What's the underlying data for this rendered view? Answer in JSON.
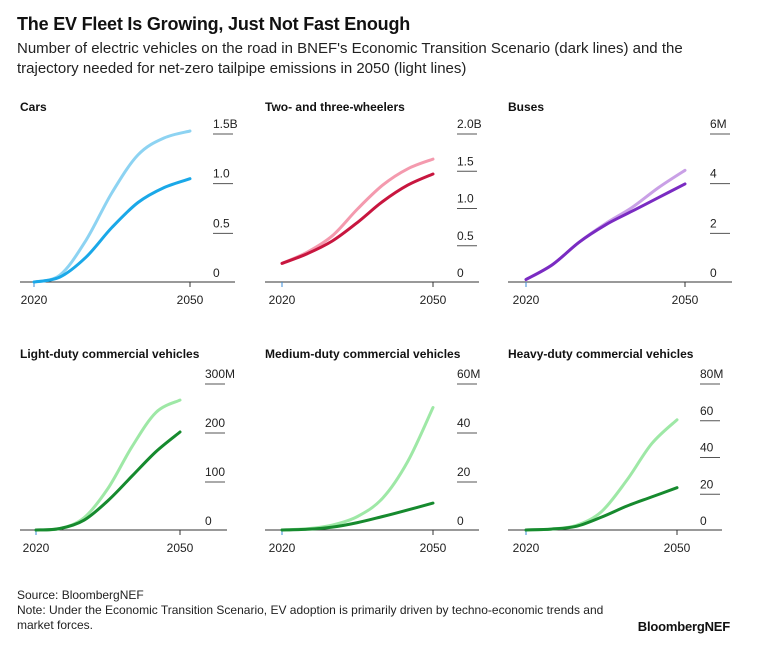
{
  "header": {
    "title": "The EV Fleet Is Growing, Just Not Fast Enough",
    "subtitle": "Number of electric vehicles on the road in BNEF's Economic Transition Scenario (dark lines) and the trajectory needed for net-zero tailpipe emissions in 2050 (light lines)"
  },
  "footer": {
    "source": "Source: BloombergNEF",
    "note": "Note: Under the Economic Transition Scenario, EV adoption is primarily driven by techno-economic trends and market forces.",
    "brand": "BloombergNEF"
  },
  "chart_data": [
    {
      "type": "line",
      "title": "Cars",
      "x": [
        2020,
        2025,
        2030,
        2035,
        2040,
        2045,
        2050
      ],
      "xticks": [
        2020,
        2050
      ],
      "ylim": [
        0,
        1.5
      ],
      "yticks": [
        0,
        0.5,
        1.0,
        1.5
      ],
      "ytick_labels": [
        "0",
        "0.5",
        "1.0",
        "1.5B"
      ],
      "colors": {
        "dark": "#1aa8e8",
        "light": "#8dd3f2"
      },
      "series": [
        {
          "name": "Economic Transition Scenario",
          "style": "dark",
          "values": [
            0.0,
            0.05,
            0.25,
            0.55,
            0.8,
            0.95,
            1.04
          ]
        },
        {
          "name": "Net-zero trajectory",
          "style": "light",
          "values": [
            0.0,
            0.07,
            0.42,
            0.9,
            1.28,
            1.45,
            1.52
          ]
        }
      ]
    },
    {
      "type": "line",
      "title": "Two- and three-wheelers",
      "x": [
        2020,
        2025,
        2030,
        2035,
        2040,
        2045,
        2050
      ],
      "xticks": [
        2020,
        2050
      ],
      "ylim": [
        0,
        2.0
      ],
      "yticks": [
        0,
        0.5,
        1.0,
        1.5,
        2.0
      ],
      "ytick_labels": [
        "0",
        "0.5",
        "1.0",
        "1.5",
        "2.0B"
      ],
      "colors": {
        "dark": "#c8163f",
        "light": "#f49aae"
      },
      "series": [
        {
          "name": "Economic Transition Scenario",
          "style": "dark",
          "values": [
            0.25,
            0.38,
            0.55,
            0.8,
            1.08,
            1.3,
            1.45
          ]
        },
        {
          "name": "Net-zero trajectory",
          "style": "light",
          "values": [
            0.25,
            0.4,
            0.62,
            0.98,
            1.3,
            1.52,
            1.65
          ]
        }
      ]
    },
    {
      "type": "line",
      "title": "Buses",
      "x": [
        2020,
        2025,
        2030,
        2035,
        2040,
        2045,
        2050
      ],
      "xticks": [
        2020,
        2050
      ],
      "ylim": [
        0,
        6
      ],
      "yticks": [
        0,
        2,
        4,
        6
      ],
      "ytick_labels": [
        "0",
        "2",
        "4",
        "6M"
      ],
      "colors": {
        "dark": "#7a2bc2",
        "light": "#c9a0e6"
      },
      "series": [
        {
          "name": "Economic Transition Scenario",
          "style": "dark",
          "values": [
            0.1,
            0.7,
            1.6,
            2.3,
            2.85,
            3.4,
            3.95
          ]
        },
        {
          "name": "Net-zero trajectory",
          "style": "light",
          "values": [
            0.1,
            0.7,
            1.6,
            2.35,
            3.0,
            3.8,
            4.5
          ]
        }
      ]
    },
    {
      "type": "line",
      "title": "Light-duty commercial vehicles",
      "x": [
        2020,
        2025,
        2030,
        2035,
        2040,
        2045,
        2050
      ],
      "xticks": [
        2020,
        2050
      ],
      "ylim": [
        0,
        300
      ],
      "yticks": [
        0,
        100,
        200,
        300
      ],
      "ytick_labels": [
        "0",
        "100",
        "200",
        "300M"
      ],
      "colors": {
        "dark": "#168a2e",
        "light": "#9ee8a6"
      },
      "series": [
        {
          "name": "Economic Transition Scenario",
          "style": "dark",
          "values": [
            0,
            3,
            20,
            60,
            110,
            160,
            200
          ]
        },
        {
          "name": "Net-zero trajectory",
          "style": "light",
          "values": [
            0,
            3,
            25,
            85,
            170,
            240,
            265
          ]
        }
      ]
    },
    {
      "type": "line",
      "title": "Medium-duty commercial vehicles",
      "x": [
        2020,
        2025,
        2030,
        2035,
        2040,
        2045,
        2050
      ],
      "xticks": [
        2020,
        2050
      ],
      "ylim": [
        0,
        60
      ],
      "yticks": [
        0,
        20,
        40,
        60
      ],
      "ytick_labels": [
        "0",
        "20",
        "40",
        "60M"
      ],
      "colors": {
        "dark": "#168a2e",
        "light": "#9ee8a6"
      },
      "series": [
        {
          "name": "Economic Transition Scenario",
          "style": "dark",
          "values": [
            0,
            0.3,
            1.2,
            3.0,
            5.5,
            8.2,
            11
          ]
        },
        {
          "name": "Net-zero trajectory",
          "style": "light",
          "values": [
            0,
            0.5,
            2.0,
            5.5,
            13,
            28,
            50
          ]
        }
      ]
    },
    {
      "type": "line",
      "title": "Heavy-duty commercial vehicles",
      "x": [
        2020,
        2025,
        2030,
        2035,
        2040,
        2045,
        2050
      ],
      "xticks": [
        2020,
        2050
      ],
      "ylim": [
        0,
        80
      ],
      "yticks": [
        0,
        20,
        40,
        60,
        80
      ],
      "ytick_labels": [
        "0",
        "20",
        "40",
        "60",
        "80M"
      ],
      "colors": {
        "dark": "#168a2e",
        "light": "#9ee8a6"
      },
      "series": [
        {
          "name": "Economic Transition Scenario",
          "style": "dark",
          "values": [
            0,
            0.5,
            2.0,
            7,
            13,
            18,
            23
          ]
        },
        {
          "name": "Net-zero trajectory",
          "style": "light",
          "values": [
            0,
            0.5,
            2.5,
            10,
            27,
            47,
            60
          ]
        }
      ]
    }
  ]
}
